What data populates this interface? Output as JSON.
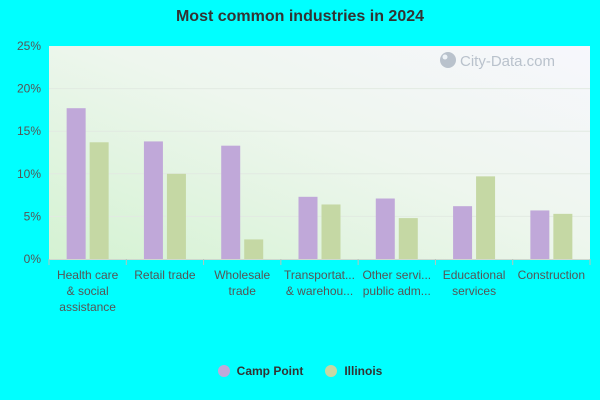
{
  "watermark": "City-Data.com",
  "chart_data": {
    "type": "bar",
    "title": "Most common industries in 2024",
    "categories": [
      [
        "Health care",
        "& social",
        "assistance"
      ],
      [
        "Retail trade"
      ],
      [
        "Wholesale",
        "trade"
      ],
      [
        "Transportat...",
        "& warehou..."
      ],
      [
        "Other servi...",
        "public adm..."
      ],
      [
        "Educational",
        "services"
      ],
      [
        "Construction"
      ]
    ],
    "series": [
      {
        "name": "Camp Point",
        "color": "#c0a8d9",
        "values": [
          17.7,
          13.8,
          13.3,
          7.3,
          7.1,
          6.2,
          5.7
        ]
      },
      {
        "name": "Illinois",
        "color": "#c5d8a4",
        "values": [
          13.7,
          10.0,
          2.3,
          6.4,
          4.8,
          9.7,
          5.3
        ]
      }
    ],
    "yticks": [
      "0%",
      "5%",
      "10%",
      "15%",
      "20%",
      "25%"
    ],
    "ylim": [
      0,
      25
    ],
    "xlabel": "",
    "ylabel": "",
    "grid": true,
    "legend_position": "bottom"
  }
}
